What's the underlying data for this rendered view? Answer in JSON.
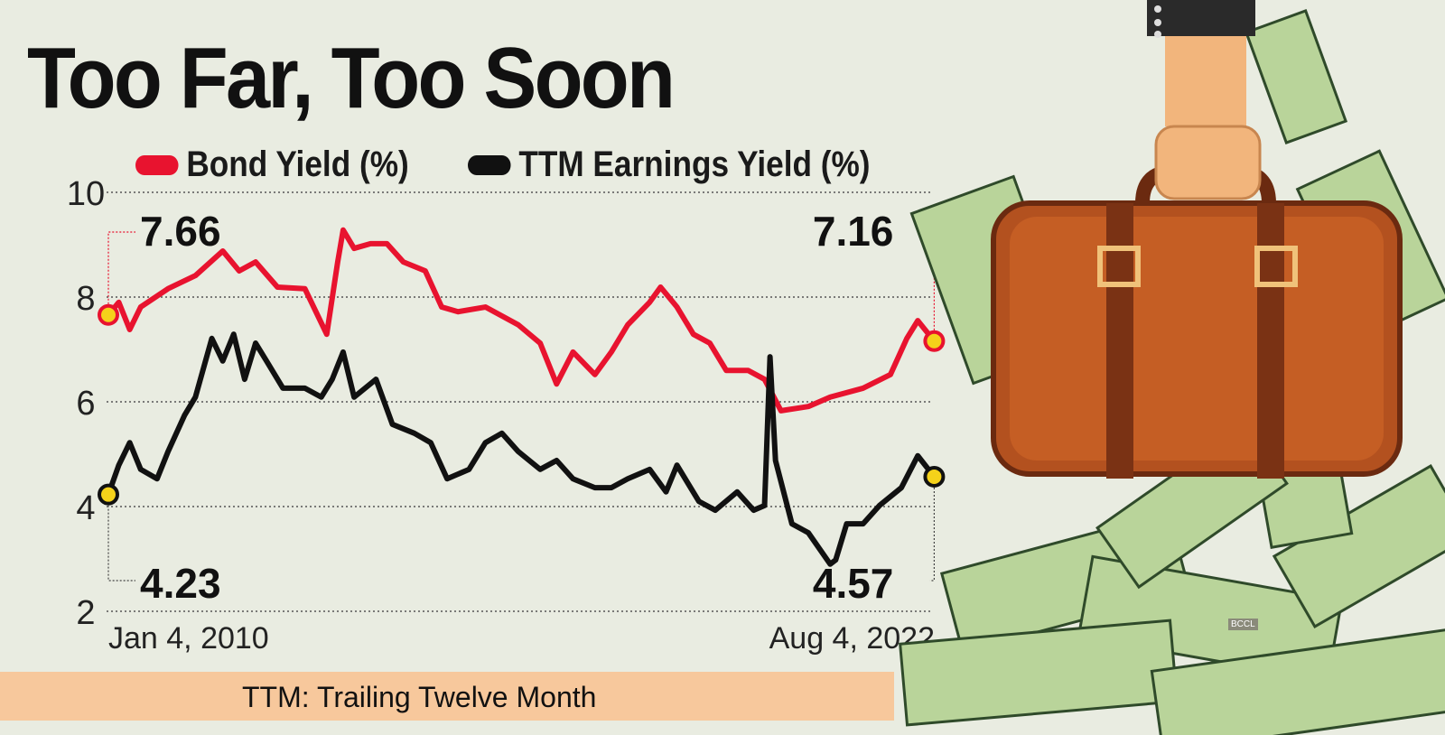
{
  "chart_data": {
    "type": "line",
    "title": "Too Far, Too Soon",
    "footnote": "TTM: Trailing Twelve Month",
    "watermark": "BCCL",
    "xlabel": "",
    "ylabel": "",
    "x_tick_labels": [
      "Jan 4, 2010",
      "Aug 4, 2022"
    ],
    "x_range": [
      "2010-01-04",
      "2022-08-04"
    ],
    "yticks": [
      2,
      4,
      6,
      8,
      10
    ],
    "ylim": [
      2,
      10
    ],
    "grid": "horizontal dotted",
    "legend": "top",
    "series": [
      {
        "name": "Bond Yield (%)",
        "color": "#e8132f",
        "start_label": "7.66",
        "end_label": "7.16",
        "points": [
          [
            "2010-01",
            7.66
          ],
          [
            "2010-03",
            7.9
          ],
          [
            "2010-05",
            7.38
          ],
          [
            "2010-07",
            7.81
          ],
          [
            "2010-12",
            8.16
          ],
          [
            "2011-05",
            8.41
          ],
          [
            "2011-10",
            8.88
          ],
          [
            "2012-01",
            8.5
          ],
          [
            "2012-04",
            8.67
          ],
          [
            "2012-08",
            8.19
          ],
          [
            "2013-01",
            8.16
          ],
          [
            "2013-05",
            7.29
          ],
          [
            "2013-07",
            8.67
          ],
          [
            "2013-08",
            9.28
          ],
          [
            "2013-10",
            8.93
          ],
          [
            "2014-01",
            9.02
          ],
          [
            "2014-04",
            9.02
          ],
          [
            "2014-07",
            8.67
          ],
          [
            "2014-11",
            8.5
          ],
          [
            "2015-02",
            7.81
          ],
          [
            "2015-05",
            7.72
          ],
          [
            "2015-10",
            7.81
          ],
          [
            "2016-01",
            7.64
          ],
          [
            "2016-04",
            7.47
          ],
          [
            "2016-08",
            7.12
          ],
          [
            "2016-11",
            6.34
          ],
          [
            "2017-02",
            6.95
          ],
          [
            "2017-06",
            6.52
          ],
          [
            "2017-09",
            6.95
          ],
          [
            "2017-12",
            7.47
          ],
          [
            "2018-04",
            7.9
          ],
          [
            "2018-06",
            8.19
          ],
          [
            "2018-09",
            7.81
          ],
          [
            "2018-12",
            7.29
          ],
          [
            "2019-03",
            7.12
          ],
          [
            "2019-06",
            6.6
          ],
          [
            "2019-10",
            6.6
          ],
          [
            "2020-01",
            6.43
          ],
          [
            "2020-04",
            5.83
          ],
          [
            "2020-09",
            5.91
          ],
          [
            "2021-01",
            6.09
          ],
          [
            "2021-07",
            6.26
          ],
          [
            "2021-12",
            6.52
          ],
          [
            "2022-03",
            7.21
          ],
          [
            "2022-05",
            7.55
          ],
          [
            "2022-08",
            7.16
          ]
        ]
      },
      {
        "name": "TTM Earnings Yield (%)",
        "color": "#111111",
        "start_label": "4.23",
        "end_label": "4.57",
        "points": [
          [
            "2010-01",
            4.23
          ],
          [
            "2010-03",
            4.79
          ],
          [
            "2010-05",
            5.22
          ],
          [
            "2010-07",
            4.71
          ],
          [
            "2010-10",
            4.53
          ],
          [
            "2010-12",
            5.05
          ],
          [
            "2011-03",
            5.74
          ],
          [
            "2011-05",
            6.09
          ],
          [
            "2011-08",
            7.21
          ],
          [
            "2011-10",
            6.78
          ],
          [
            "2011-12",
            7.29
          ],
          [
            "2012-02",
            6.43
          ],
          [
            "2012-04",
            7.12
          ],
          [
            "2012-06",
            6.78
          ],
          [
            "2012-09",
            6.26
          ],
          [
            "2013-01",
            6.26
          ],
          [
            "2013-04",
            6.09
          ],
          [
            "2013-06",
            6.43
          ],
          [
            "2013-08",
            6.95
          ],
          [
            "2013-10",
            6.09
          ],
          [
            "2014-02",
            6.43
          ],
          [
            "2014-05",
            5.57
          ],
          [
            "2014-09",
            5.4
          ],
          [
            "2014-12",
            5.22
          ],
          [
            "2015-03",
            4.53
          ],
          [
            "2015-07",
            4.71
          ],
          [
            "2015-10",
            5.22
          ],
          [
            "2016-01",
            5.4
          ],
          [
            "2016-04",
            5.05
          ],
          [
            "2016-08",
            4.71
          ],
          [
            "2016-11",
            4.88
          ],
          [
            "2017-02",
            4.53
          ],
          [
            "2017-06",
            4.36
          ],
          [
            "2017-09",
            4.36
          ],
          [
            "2017-12",
            4.53
          ],
          [
            "2018-04",
            4.71
          ],
          [
            "2018-07",
            4.28
          ],
          [
            "2018-09",
            4.79
          ],
          [
            "2019-01",
            4.1
          ],
          [
            "2019-04",
            3.93
          ],
          [
            "2019-08",
            4.28
          ],
          [
            "2019-11",
            3.93
          ],
          [
            "2020-01",
            4.02
          ],
          [
            "2020-02",
            6.86
          ],
          [
            "2020-03",
            4.88
          ],
          [
            "2020-06",
            3.67
          ],
          [
            "2020-09",
            3.5
          ],
          [
            "2021-01",
            2.9
          ],
          [
            "2021-02",
            2.98
          ],
          [
            "2021-04",
            3.67
          ],
          [
            "2021-07",
            3.67
          ],
          [
            "2021-10",
            4.02
          ],
          [
            "2022-02",
            4.36
          ],
          [
            "2022-05",
            4.97
          ],
          [
            "2022-08",
            4.57
          ]
        ]
      }
    ],
    "endpoint_marker_color": "#f5d21a",
    "colors": {
      "background": "#e9ece1",
      "footer_band": "#f7c89c"
    }
  }
}
